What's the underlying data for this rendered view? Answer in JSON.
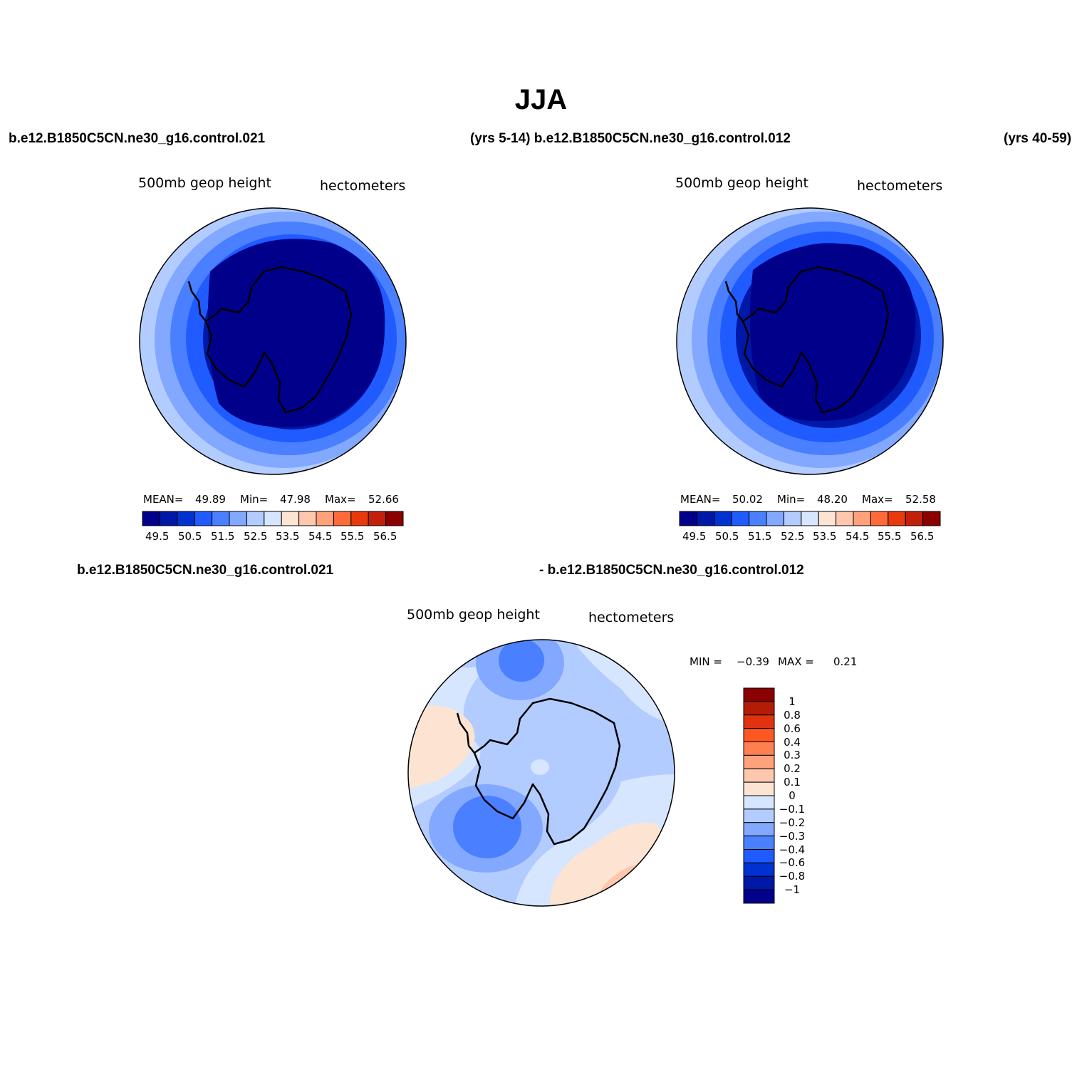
{
  "title": "JJA",
  "header": {
    "top_left": "b.e12.B1850C5CN.ne30_g16.control.021",
    "top_middle": "(yrs 5-14) b.e12.B1850C5CN.ne30_g16.control.012",
    "top_right": "(yrs 40-59)",
    "bottom_left": "b.e12.B1850C5CN.ne30_g16.control.021",
    "bottom_right": "- b.e12.B1850C5CN.ne30_g16.control.012"
  },
  "panels": [
    {
      "variable": "500mb  geop  height",
      "units": "hectometers",
      "stats": {
        "mean_label": "MEAN=",
        "mean": "49.89",
        "min_label": "Min=",
        "min": "47.98",
        "max_label": "Max=",
        "max": "52.66"
      },
      "colorbar_ticks": [
        "49.5",
        "50.5",
        "51.5",
        "52.5",
        "53.5",
        "54.5",
        "55.5",
        "56.5"
      ]
    },
    {
      "variable": "500mb  geop  height",
      "units": "hectometers",
      "stats": {
        "mean_label": "MEAN=",
        "mean": "50.02",
        "min_label": "Min=",
        "min": "48.20",
        "max_label": "Max=",
        "max": "52.58"
      },
      "colorbar_ticks": [
        "49.5",
        "50.5",
        "51.5",
        "52.5",
        "53.5",
        "54.5",
        "55.5",
        "56.5"
      ]
    },
    {
      "variable": "500mb  geop  height",
      "units": "hectometers",
      "stats": {
        "min_label": "MIN =",
        "min": "−0.39",
        "max_label": "MAX =",
        "max": "0.21"
      },
      "colorbar_ticks": [
        "1",
        "0.8",
        "0.6",
        "0.4",
        "0.3",
        "0.2",
        "0.1",
        "0",
        "−0.1",
        "−0.2",
        "−0.3",
        "−0.4",
        "−0.6",
        "−0.8",
        "−1"
      ]
    }
  ],
  "colors": {
    "mean_scale": [
      "#00008b",
      "#0018a8",
      "#0032d2",
      "#1f5bff",
      "#4a80ff",
      "#82a8ff",
      "#b3ccff",
      "#d6e6ff",
      "#fde4d2",
      "#ffc7ad",
      "#ffa27c",
      "#ff6a3a",
      "#e83a0c",
      "#c2200a",
      "#8b0000"
    ],
    "diff_scale_top_to_bottom": [
      "#8b0000",
      "#b51c06",
      "#e03210",
      "#ff5722",
      "#ff7f4f",
      "#ffa27c",
      "#ffc7ad",
      "#fde4d2",
      "#d6e6ff",
      "#b3ccff",
      "#82a8ff",
      "#4a80ff",
      "#1f5bff",
      "#0032d2",
      "#0018a8",
      "#00008b"
    ]
  }
}
